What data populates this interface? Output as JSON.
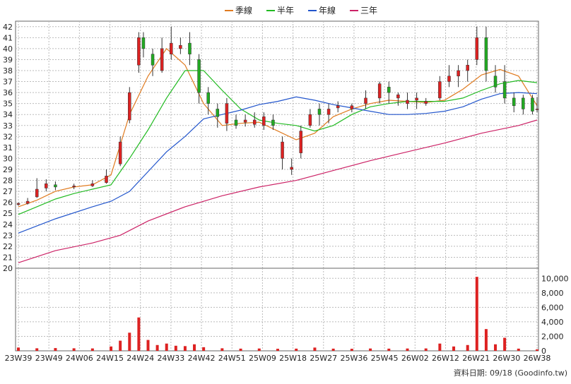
{
  "chart_data": {
    "type": "line",
    "legend": [
      {
        "name": "季線",
        "color": "#e07b20"
      },
      {
        "name": "半年",
        "color": "#22bb22"
      },
      {
        "name": "年線",
        "color": "#2255cc"
      },
      {
        "name": "三年",
        "color": "#cc2266"
      }
    ],
    "legend_placement": "top-center",
    "grid": true,
    "price_axis": {
      "ylim": [
        20,
        42.5
      ],
      "ticks": [
        20,
        21,
        22,
        23,
        24,
        25,
        26,
        27,
        28,
        29,
        30,
        31,
        32,
        33,
        34,
        35,
        36,
        37,
        38,
        39,
        40,
        41,
        42
      ]
    },
    "volume_axis": {
      "ylim": [
        0,
        11000
      ],
      "ticks": [
        0,
        2000,
        4000,
        6000,
        8000,
        10000
      ],
      "tick_labels": [
        "0",
        "2,000",
        "4,000",
        "6,000",
        "8,000",
        "10,000"
      ]
    },
    "x_tick_labels": [
      "23W39",
      "23W49",
      "24W06",
      "24W15",
      "24W24",
      "24W33",
      "24W42",
      "24W51",
      "25W09",
      "25W18",
      "25W27",
      "25W36",
      "25W45",
      "26W02",
      "26W12",
      "26W21",
      "26W30",
      "26W38"
    ],
    "candle_colors": {
      "up": "#dd2222",
      "down": "#22aa22"
    },
    "volume_color": "#dd2222",
    "footer_text": "資料日期: 09/18  (Goodinfo.tw)",
    "series_samples": [
      {
        "name": "季線",
        "points": [
          [
            0,
            25.6
          ],
          [
            4,
            26.2
          ],
          [
            8,
            27.0
          ],
          [
            12,
            27.4
          ],
          [
            16,
            27.6
          ],
          [
            20,
            28.5
          ],
          [
            24,
            34.0
          ],
          [
            28,
            37.5
          ],
          [
            32,
            40.0
          ],
          [
            36,
            38.5
          ],
          [
            40,
            35.0
          ],
          [
            44,
            33.0
          ],
          [
            48,
            33.2
          ],
          [
            52,
            33.3
          ],
          [
            56,
            32.5
          ],
          [
            60,
            31.7
          ],
          [
            64,
            32.3
          ],
          [
            68,
            33.8
          ],
          [
            72,
            34.5
          ],
          [
            76,
            35.0
          ],
          [
            80,
            35.3
          ],
          [
            84,
            35.2
          ],
          [
            88,
            35.1
          ],
          [
            92,
            35.3
          ],
          [
            96,
            36.3
          ],
          [
            100,
            37.6
          ],
          [
            104,
            38.1
          ],
          [
            108,
            37.5
          ],
          [
            112,
            34.8
          ]
        ]
      },
      {
        "name": "半年",
        "points": [
          [
            0,
            24.9
          ],
          [
            4,
            25.6
          ],
          [
            8,
            26.3
          ],
          [
            12,
            26.8
          ],
          [
            16,
            27.2
          ],
          [
            20,
            27.6
          ],
          [
            24,
            30.0
          ],
          [
            28,
            32.6
          ],
          [
            32,
            35.5
          ],
          [
            36,
            38.0
          ],
          [
            40,
            38.0
          ],
          [
            44,
            36.2
          ],
          [
            48,
            34.5
          ],
          [
            52,
            33.5
          ],
          [
            56,
            33.2
          ],
          [
            60,
            33.0
          ],
          [
            64,
            32.5
          ],
          [
            68,
            33.0
          ],
          [
            72,
            34.0
          ],
          [
            76,
            34.7
          ],
          [
            80,
            35.0
          ],
          [
            84,
            35.2
          ],
          [
            88,
            35.2
          ],
          [
            92,
            35.2
          ],
          [
            96,
            35.5
          ],
          [
            100,
            36.2
          ],
          [
            104,
            36.8
          ],
          [
            108,
            37.1
          ],
          [
            112,
            36.9
          ]
        ]
      },
      {
        "name": "年線",
        "points": [
          [
            0,
            23.2
          ],
          [
            8,
            24.5
          ],
          [
            16,
            25.6
          ],
          [
            20,
            26.1
          ],
          [
            24,
            27.0
          ],
          [
            28,
            28.8
          ],
          [
            32,
            30.6
          ],
          [
            36,
            32.0
          ],
          [
            40,
            33.6
          ],
          [
            44,
            34.0
          ],
          [
            48,
            34.4
          ],
          [
            52,
            34.9
          ],
          [
            56,
            35.2
          ],
          [
            60,
            35.6
          ],
          [
            64,
            35.3
          ],
          [
            68,
            34.9
          ],
          [
            72,
            34.6
          ],
          [
            76,
            34.3
          ],
          [
            80,
            34.0
          ],
          [
            84,
            34.0
          ],
          [
            88,
            34.1
          ],
          [
            92,
            34.3
          ],
          [
            96,
            34.7
          ],
          [
            100,
            35.4
          ],
          [
            104,
            35.9
          ],
          [
            108,
            36.0
          ],
          [
            112,
            35.9
          ]
        ]
      },
      {
        "name": "三年",
        "points": [
          [
            0,
            20.5
          ],
          [
            8,
            21.6
          ],
          [
            16,
            22.3
          ],
          [
            22,
            23.0
          ],
          [
            28,
            24.3
          ],
          [
            36,
            25.6
          ],
          [
            44,
            26.6
          ],
          [
            52,
            27.4
          ],
          [
            60,
            28.0
          ],
          [
            68,
            28.9
          ],
          [
            76,
            29.8
          ],
          [
            84,
            30.6
          ],
          [
            92,
            31.4
          ],
          [
            100,
            32.3
          ],
          [
            108,
            33.0
          ],
          [
            112,
            33.5
          ]
        ]
      }
    ],
    "candles_sample": [
      [
        0,
        25.8,
        25.9,
        26.0,
        25.7
      ],
      [
        2,
        25.9,
        26.1,
        26.4,
        25.8
      ],
      [
        4,
        26.5,
        27.2,
        28.2,
        26.4
      ],
      [
        6,
        27.3,
        27.7,
        28.1,
        27.0
      ],
      [
        8,
        27.6,
        27.4,
        27.9,
        27.1
      ],
      [
        12,
        27.4,
        27.5,
        27.7,
        27.2
      ],
      [
        16,
        27.5,
        27.7,
        28.0,
        27.4
      ],
      [
        19,
        27.8,
        28.4,
        29.0,
        27.7
      ],
      [
        22,
        29.5,
        31.5,
        32.0,
        29.3
      ],
      [
        24,
        33.5,
        36.0,
        36.5,
        33.2
      ],
      [
        26,
        38.5,
        41.0,
        41.5,
        37.8
      ],
      [
        27,
        41.0,
        40.0,
        41.5,
        39.2
      ],
      [
        29,
        39.5,
        38.5,
        40.0,
        37.5
      ],
      [
        31,
        38.0,
        40.0,
        41.0,
        37.8
      ],
      [
        33,
        39.5,
        40.5,
        42.0,
        39.0
      ],
      [
        35,
        40.0,
        40.3,
        41.0,
        39.5
      ],
      [
        37,
        40.5,
        39.5,
        41.5,
        38.5
      ],
      [
        39,
        39.0,
        36.0,
        39.5,
        35.0
      ],
      [
        41,
        36.0,
        35.0,
        36.5,
        34.0
      ],
      [
        43,
        34.5,
        33.8,
        35.0,
        32.8
      ],
      [
        45,
        33.2,
        35.0,
        35.5,
        32.5
      ],
      [
        47,
        33.5,
        33.0,
        34.0,
        32.7
      ],
      [
        49,
        33.3,
        33.5,
        34.0,
        32.9
      ],
      [
        51,
        33.1,
        33.5,
        34.2,
        32.8
      ],
      [
        53,
        33.0,
        33.8,
        34.2,
        32.6
      ],
      [
        55,
        33.5,
        33.0,
        34.0,
        32.6
      ],
      [
        57,
        30.0,
        31.5,
        32.0,
        29.0
      ],
      [
        59,
        29.0,
        29.2,
        30.0,
        28.5
      ],
      [
        61,
        30.5,
        32.5,
        33.0,
        30.0
      ],
      [
        63,
        33.0,
        34.0,
        34.5,
        32.8
      ],
      [
        65,
        34.5,
        34.0,
        35.0,
        33.0
      ],
      [
        67,
        34.0,
        34.5,
        35.0,
        33.2
      ],
      [
        69,
        34.6,
        34.8,
        35.2,
        34.2
      ],
      [
        72,
        34.5,
        34.8,
        35.0,
        34.2
      ],
      [
        75,
        35.0,
        35.5,
        36.2,
        34.5
      ],
      [
        78,
        35.5,
        36.8,
        37.0,
        35.0
      ],
      [
        80,
        36.5,
        36.0,
        37.0,
        35.0
      ],
      [
        82,
        35.5,
        35.8,
        36.0,
        34.8
      ],
      [
        84,
        35.0,
        35.3,
        36.0,
        34.5
      ],
      [
        86,
        35.3,
        35.5,
        36.0,
        34.5
      ],
      [
        88,
        35.0,
        35.2,
        35.5,
        34.8
      ],
      [
        91,
        35.5,
        37.0,
        37.5,
        35.3
      ],
      [
        93,
        37.0,
        37.5,
        38.5,
        36.5
      ],
      [
        95,
        37.5,
        38.0,
        38.5,
        36.5
      ],
      [
        97,
        38.0,
        38.5,
        39.0,
        37.0
      ],
      [
        99,
        39.0,
        41.0,
        42.0,
        38.5
      ],
      [
        101,
        41.0,
        38.0,
        42.0,
        37.0
      ],
      [
        103,
        37.5,
        36.5,
        38.5,
        36.0
      ],
      [
        105,
        37.0,
        35.5,
        38.5,
        35.0
      ],
      [
        107,
        35.5,
        34.8,
        36.0,
        34.2
      ],
      [
        109,
        35.5,
        34.5,
        35.8,
        34.0
      ],
      [
        111,
        35.5,
        34.3,
        35.8,
        34.0
      ],
      [
        112,
        34.5,
        34.5,
        35.6,
        34.2
      ]
    ],
    "volume_sample": [
      [
        0,
        450
      ],
      [
        4,
        350
      ],
      [
        8,
        380
      ],
      [
        12,
        350
      ],
      [
        16,
        330
      ],
      [
        20,
        600
      ],
      [
        22,
        1400
      ],
      [
        24,
        2500
      ],
      [
        26,
        4600
      ],
      [
        28,
        1500
      ],
      [
        30,
        800
      ],
      [
        32,
        1000
      ],
      [
        34,
        700
      ],
      [
        36,
        650
      ],
      [
        38,
        900
      ],
      [
        40,
        500
      ],
      [
        44,
        350
      ],
      [
        48,
        300
      ],
      [
        52,
        320
      ],
      [
        56,
        280
      ],
      [
        60,
        300
      ],
      [
        64,
        450
      ],
      [
        68,
        300
      ],
      [
        72,
        280
      ],
      [
        76,
        320
      ],
      [
        80,
        300
      ],
      [
        84,
        320
      ],
      [
        88,
        330
      ],
      [
        91,
        1000
      ],
      [
        94,
        600
      ],
      [
        97,
        800
      ],
      [
        99,
        10200
      ],
      [
        101,
        3000
      ],
      [
        103,
        900
      ],
      [
        105,
        1800
      ],
      [
        108,
        300
      ],
      [
        112,
        200
      ]
    ]
  }
}
